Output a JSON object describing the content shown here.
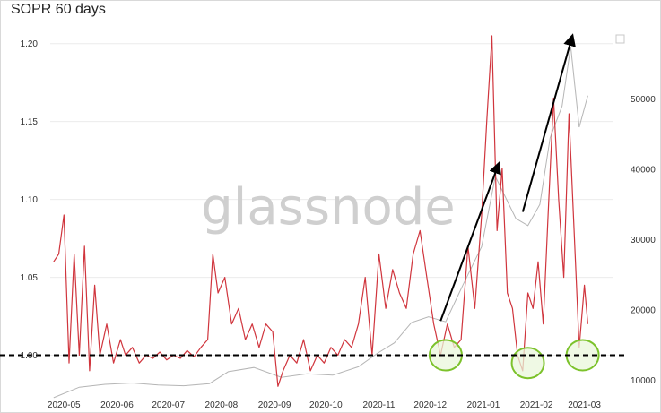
{
  "title": "SOPR 60 days",
  "watermark": "glassnode",
  "colors": {
    "sopr": "#d0353d",
    "price": "#b5b5b5",
    "baseline": "#000000",
    "circle_stroke": "#7cc22b",
    "circle_fill": "#eaf7db",
    "grid": "#ececec"
  },
  "chart_data": {
    "type": "line",
    "title": "SOPR 60 days",
    "xlabel": "",
    "ylabel": "",
    "x_ticks": [
      "2020-05",
      "2020-06",
      "2020-07",
      "2020-08",
      "2020-09",
      "2020-10",
      "2020-11",
      "2020-12",
      "2021-01",
      "2021-02",
      "2021-03"
    ],
    "y_left_ticks": [
      "1.00",
      "1.05",
      "1.10",
      "1.15",
      "1.20"
    ],
    "y_right_ticks": [
      "10000",
      "20000",
      "30000",
      "40000",
      "50000"
    ],
    "ylim_left": [
      0.975,
      1.205
    ],
    "ylim_right": [
      8000,
      59000
    ],
    "xlim": [
      "2020-04-23",
      "2021-03-18"
    ],
    "grid": true,
    "series": [
      {
        "axis": "left",
        "color": "#d0353d",
        "x": [
          "2020-04-25",
          "2020-04-28",
          "2020-05-01",
          "2020-05-04",
          "2020-05-07",
          "2020-05-10",
          "2020-05-13",
          "2020-05-16",
          "2020-05-19",
          "2020-05-22",
          "2020-05-26",
          "2020-05-30",
          "2020-06-03",
          "2020-06-06",
          "2020-06-10",
          "2020-06-14",
          "2020-06-18",
          "2020-06-22",
          "2020-06-26",
          "2020-06-30",
          "2020-07-04",
          "2020-07-08",
          "2020-07-12",
          "2020-07-16",
          "2020-07-20",
          "2020-07-24",
          "2020-07-27",
          "2020-07-30",
          "2020-08-03",
          "2020-08-07",
          "2020-08-11",
          "2020-08-15",
          "2020-08-19",
          "2020-08-23",
          "2020-08-27",
          "2020-08-31",
          "2020-09-03",
          "2020-09-06",
          "2020-09-10",
          "2020-09-14",
          "2020-09-18",
          "2020-09-22",
          "2020-09-26",
          "2020-09-30",
          "2020-10-04",
          "2020-10-08",
          "2020-10-12",
          "2020-10-16",
          "2020-10-20",
          "2020-10-24",
          "2020-10-28",
          "2020-11-01",
          "2020-11-05",
          "2020-11-09",
          "2020-11-13",
          "2020-11-17",
          "2020-11-21",
          "2020-11-25",
          "2020-11-29",
          "2020-12-03",
          "2020-12-07",
          "2020-12-11",
          "2020-12-15",
          "2020-12-19",
          "2020-12-23",
          "2020-12-27",
          "2020-12-31",
          "2021-01-03",
          "2021-01-06",
          "2021-01-09",
          "2021-01-12",
          "2021-01-15",
          "2021-01-18",
          "2021-01-21",
          "2021-01-24",
          "2021-01-27",
          "2021-01-30",
          "2021-02-02",
          "2021-02-05",
          "2021-02-08",
          "2021-02-11",
          "2021-02-14",
          "2021-02-17",
          "2021-02-20",
          "2021-02-23",
          "2021-02-26",
          "2021-03-01",
          "2021-03-03"
        ],
        "values": [
          1.06,
          1.065,
          1.09,
          0.995,
          1.065,
          1.0,
          1.07,
          0.99,
          1.045,
          1.0,
          1.02,
          0.995,
          1.01,
          1.0,
          1.005,
          0.995,
          1.0,
          0.998,
          1.002,
          0.997,
          1.0,
          0.998,
          1.003,
          0.999,
          1.005,
          1.01,
          1.065,
          1.04,
          1.05,
          1.02,
          1.03,
          1.01,
          1.02,
          1.005,
          1.02,
          1.015,
          0.98,
          0.99,
          1.0,
          0.995,
          1.01,
          0.99,
          1.0,
          0.995,
          1.005,
          1.0,
          1.01,
          1.005,
          1.02,
          1.05,
          1.0,
          1.065,
          1.03,
          1.055,
          1.04,
          1.03,
          1.065,
          1.08,
          1.05,
          1.02,
          1.0,
          1.02,
          1.005,
          1.01,
          1.07,
          1.03,
          1.09,
          1.15,
          1.205,
          1.08,
          1.12,
          1.04,
          1.03,
          1.0,
          0.99,
          1.04,
          1.03,
          1.06,
          1.02,
          1.095,
          1.165,
          1.1,
          1.05,
          1.155,
          1.08,
          1.005,
          1.045,
          1.02
        ]
      },
      {
        "axis": "right",
        "color": "#b5b5b5",
        "x": [
          "2020-04-25",
          "2020-05-10",
          "2020-05-25",
          "2020-06-10",
          "2020-06-25",
          "2020-07-10",
          "2020-07-25",
          "2020-08-05",
          "2020-08-20",
          "2020-09-05",
          "2020-09-20",
          "2020-10-05",
          "2020-10-20",
          "2020-10-31",
          "2020-11-10",
          "2020-11-20",
          "2020-11-30",
          "2020-12-10",
          "2020-12-20",
          "2020-12-31",
          "2021-01-08",
          "2021-01-14",
          "2021-01-20",
          "2021-01-27",
          "2021-02-03",
          "2021-02-09",
          "2021-02-16",
          "2021-02-21",
          "2021-02-26",
          "2021-03-03"
        ],
        "values": [
          7500,
          9000,
          9400,
          9600,
          9300,
          9200,
          9500,
          11200,
          11800,
          10400,
          10900,
          10700,
          11900,
          13800,
          15300,
          18200,
          19000,
          18300,
          23500,
          29000,
          39000,
          36000,
          33000,
          32000,
          35000,
          44500,
          49000,
          57500,
          46000,
          50500
        ]
      }
    ],
    "annotations": [
      {
        "type": "hline",
        "axis": "left",
        "y": 1.0,
        "style": "dashed",
        "color": "#000000"
      },
      {
        "type": "arrow",
        "from": [
          "2020-12-07",
          1.022
        ],
        "to": [
          "2021-01-10",
          1.123
        ]
      },
      {
        "type": "arrow",
        "from": [
          "2021-01-24",
          1.092
        ],
        "to": [
          "2021-02-22",
          1.205
        ]
      },
      {
        "type": "circle",
        "center": [
          "2020-12-10",
          1.0
        ]
      },
      {
        "type": "circle",
        "center": [
          "2021-01-27",
          0.995
        ]
      },
      {
        "type": "circle",
        "center": [
          "2021-02-28",
          1.0
        ]
      }
    ]
  }
}
